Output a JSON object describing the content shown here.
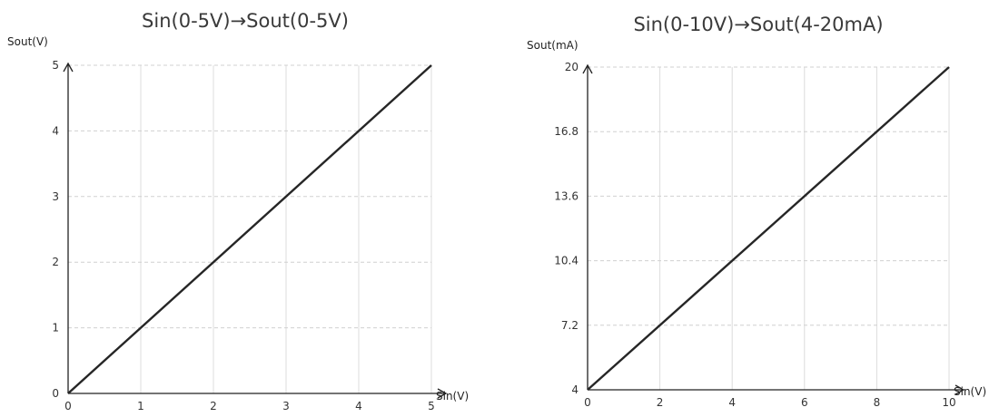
{
  "chart_data": [
    {
      "type": "line",
      "title": "Sin(0-5V)→Sout(0-5V)",
      "xlabel": "Sin(V)",
      "ylabel": "Sout(V)",
      "xlim": [
        0,
        5
      ],
      "ylim": [
        0,
        5
      ],
      "x_ticks": [
        "0",
        "1",
        "2",
        "3",
        "4",
        "5"
      ],
      "y_ticks": [
        "0",
        "1",
        "2",
        "3",
        "4",
        "5"
      ],
      "x_tick_values": [
        0,
        1,
        2,
        3,
        4,
        5
      ],
      "y_tick_values": [
        0,
        1,
        2,
        3,
        4,
        5
      ],
      "grid": true,
      "series": [
        {
          "x": [
            0,
            5
          ],
          "y": [
            0,
            5
          ],
          "color": "#262626"
        }
      ]
    },
    {
      "type": "line",
      "title": "Sin(0-10V)→Sout(4-20mA)",
      "xlabel": "Sin(V)",
      "ylabel": "Sout(mA)",
      "xlim": [
        0,
        10
      ],
      "ylim": [
        4,
        20
      ],
      "x_ticks": [
        "0",
        "2",
        "4",
        "6",
        "8",
        "10"
      ],
      "y_ticks": [
        "4",
        "7.2",
        "10.4",
        "13.6",
        "16.8",
        "20"
      ],
      "x_tick_values": [
        0,
        2,
        4,
        6,
        8,
        10
      ],
      "y_tick_values": [
        4,
        7.2,
        10.4,
        13.6,
        16.8,
        20
      ],
      "grid": true,
      "series": [
        {
          "x": [
            0,
            10
          ],
          "y": [
            4,
            20
          ],
          "color": "#262626"
        }
      ]
    }
  ]
}
